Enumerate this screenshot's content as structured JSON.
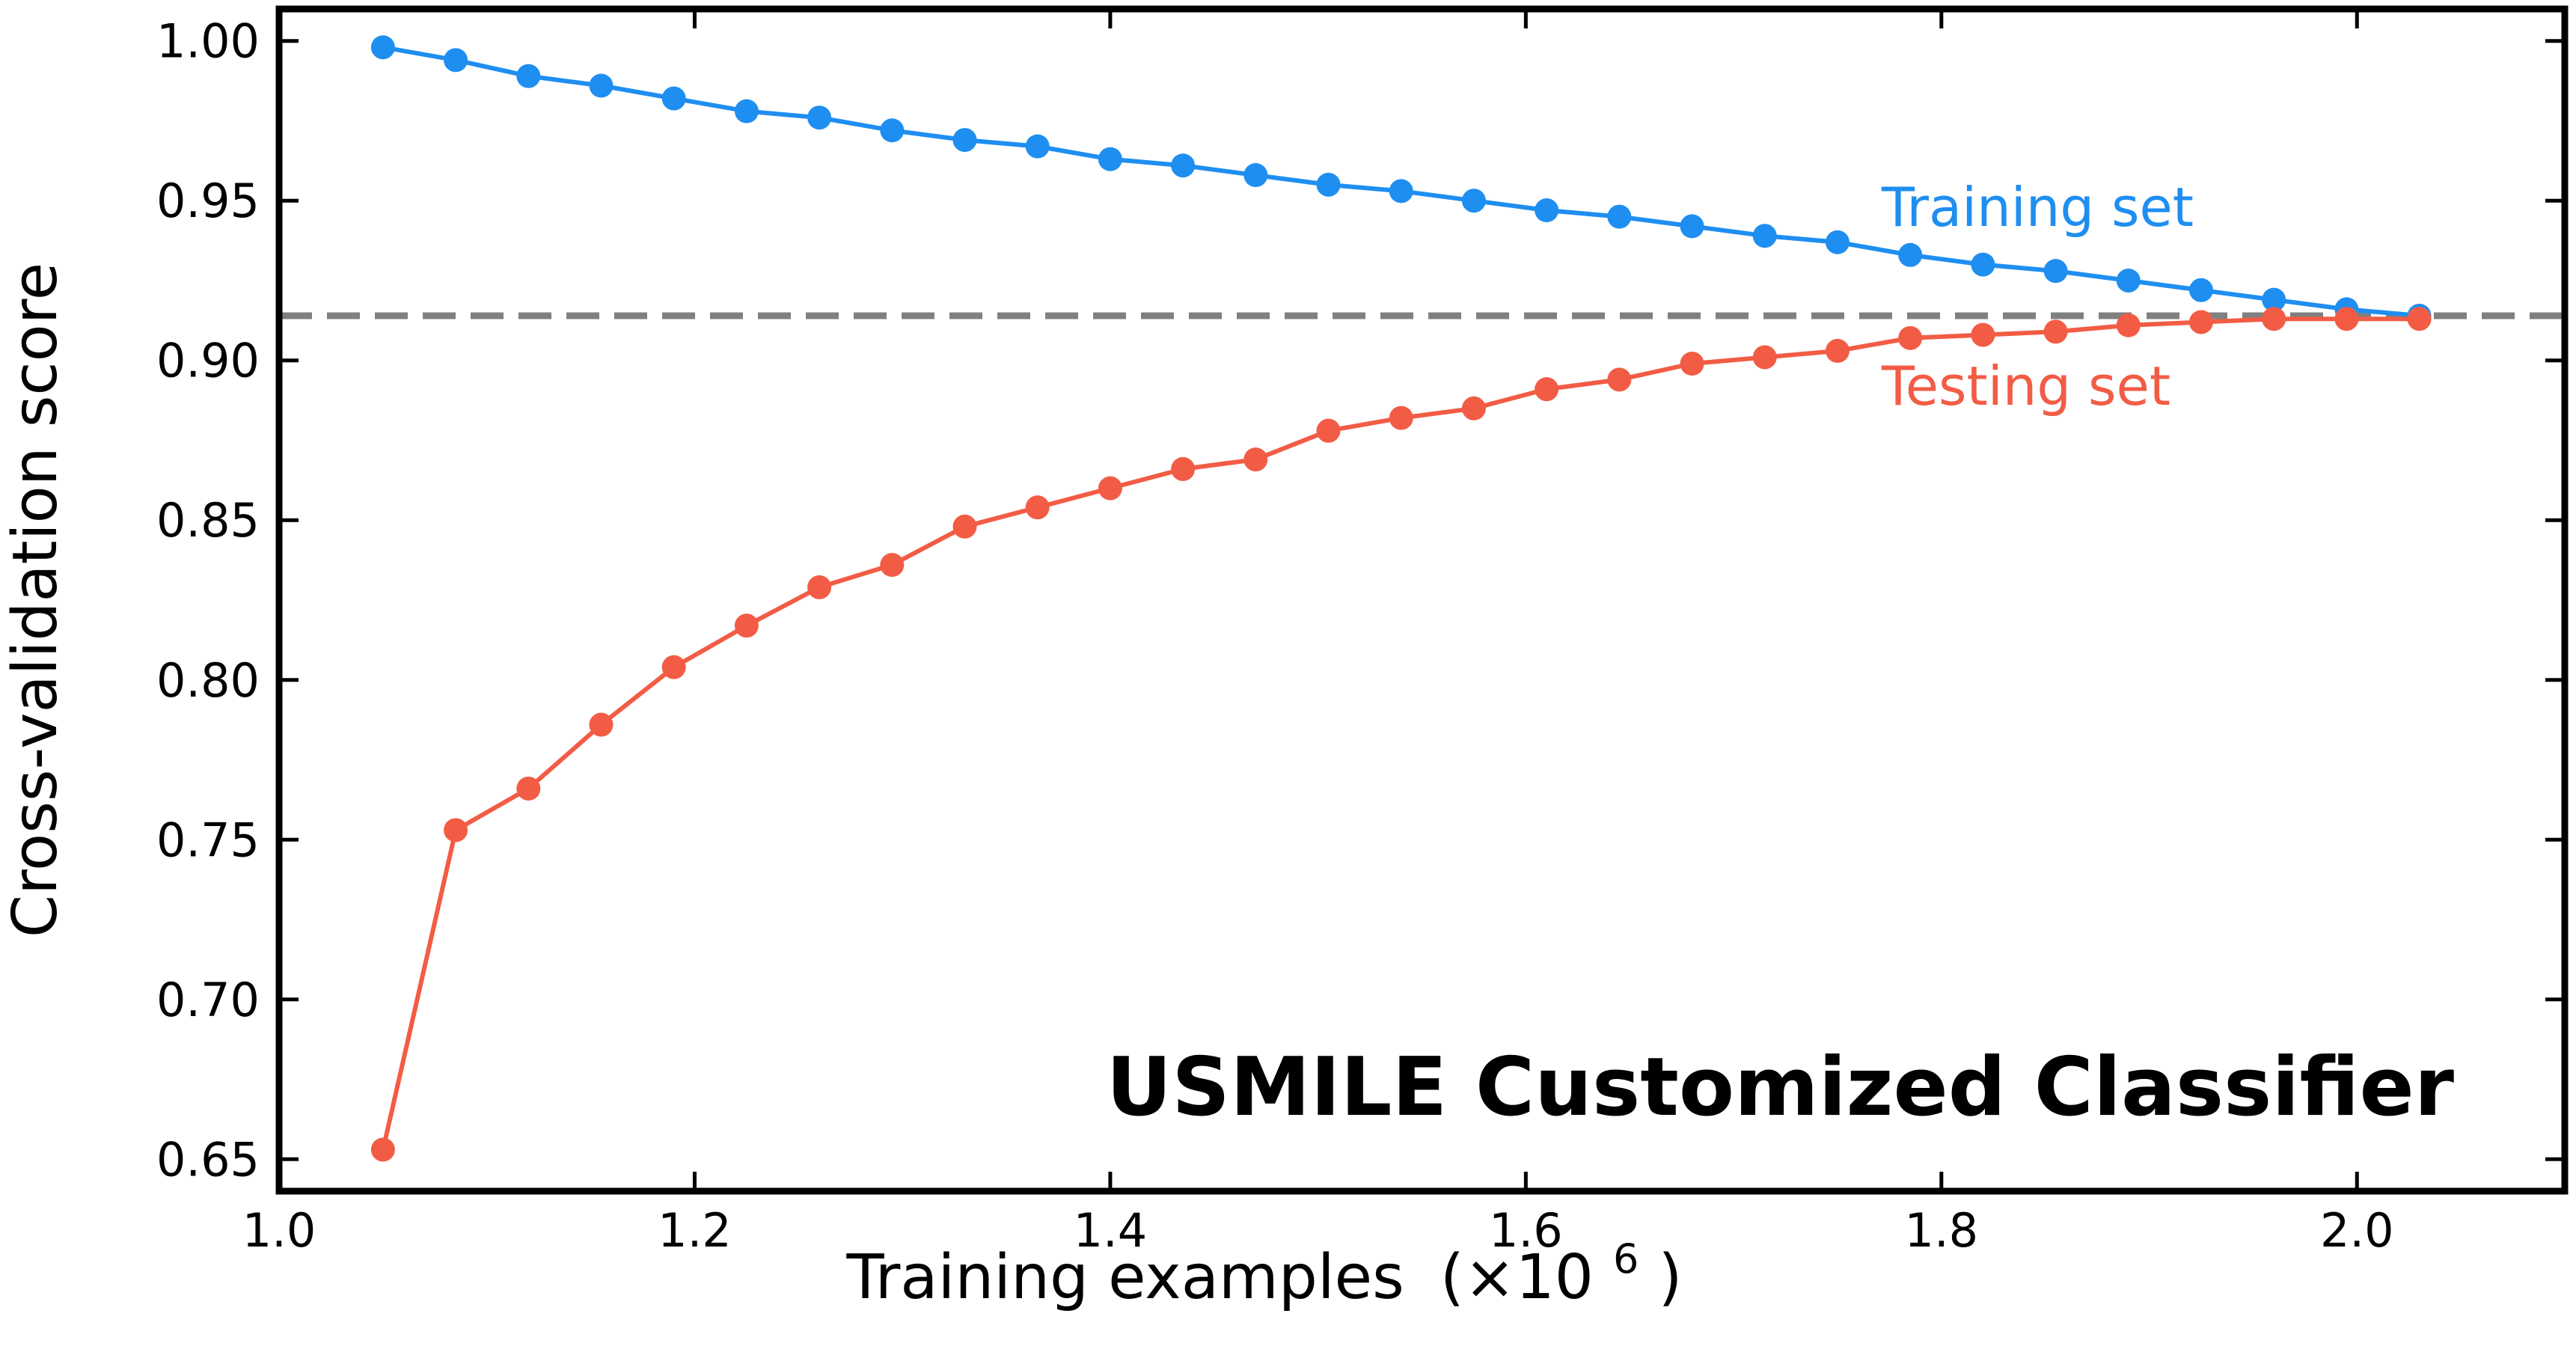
{
  "chart_data": {
    "type": "line",
    "title": "USMILE Customized Classifier",
    "xlabel": "Training examples",
    "xlabel_unit": "(×10",
    "xlabel_exponent": "6",
    "xlabel_close": ")",
    "ylabel": "Cross-validation score",
    "xlim": [
      1.0,
      2.1
    ],
    "ylim": [
      0.64,
      1.01
    ],
    "x_ticks": [
      1.0,
      1.2,
      1.4,
      1.6,
      1.8,
      2.0
    ],
    "x_tick_labels": [
      "1.0",
      "1.2",
      "1.4",
      "1.6",
      "1.8",
      "2.0"
    ],
    "y_ticks": [
      0.65,
      0.7,
      0.75,
      0.8,
      0.85,
      0.9,
      0.95,
      1.0
    ],
    "y_tick_labels": [
      "0.65",
      "0.70",
      "0.75",
      "0.80",
      "0.85",
      "0.90",
      "0.95",
      "1.00"
    ],
    "grid": false,
    "reference_line": {
      "y": 0.914,
      "style": "dashed",
      "color": "#808080"
    },
    "x": [
      1.05,
      1.085,
      1.12,
      1.155,
      1.19,
      1.225,
      1.26,
      1.295,
      1.33,
      1.365,
      1.4,
      1.435,
      1.47,
      1.505,
      1.54,
      1.575,
      1.61,
      1.645,
      1.68,
      1.715,
      1.75,
      1.785,
      1.82,
      1.855,
      1.89,
      1.925,
      1.96,
      1.995,
      2.03
    ],
    "series": [
      {
        "name": "Training set",
        "color": "#1f8ef1",
        "label_position": "right, above the line",
        "values": [
          0.998,
          0.994,
          0.989,
          0.986,
          0.982,
          0.978,
          0.976,
          0.972,
          0.969,
          0.967,
          0.963,
          0.961,
          0.958,
          0.955,
          0.953,
          0.95,
          0.947,
          0.945,
          0.942,
          0.939,
          0.937,
          0.933,
          0.93,
          0.928,
          0.925,
          0.922,
          0.919,
          0.916,
          0.914
        ]
      },
      {
        "name": "Testing set",
        "color": "#f25c45",
        "label_position": "right, below the line",
        "values": [
          0.653,
          0.753,
          0.766,
          0.786,
          0.804,
          0.817,
          0.829,
          0.836,
          0.848,
          0.854,
          0.86,
          0.866,
          0.869,
          0.878,
          0.882,
          0.885,
          0.891,
          0.894,
          0.899,
          0.901,
          0.903,
          0.907,
          0.908,
          0.909,
          0.911,
          0.912,
          0.913,
          0.913,
          0.913
        ]
      }
    ]
  }
}
